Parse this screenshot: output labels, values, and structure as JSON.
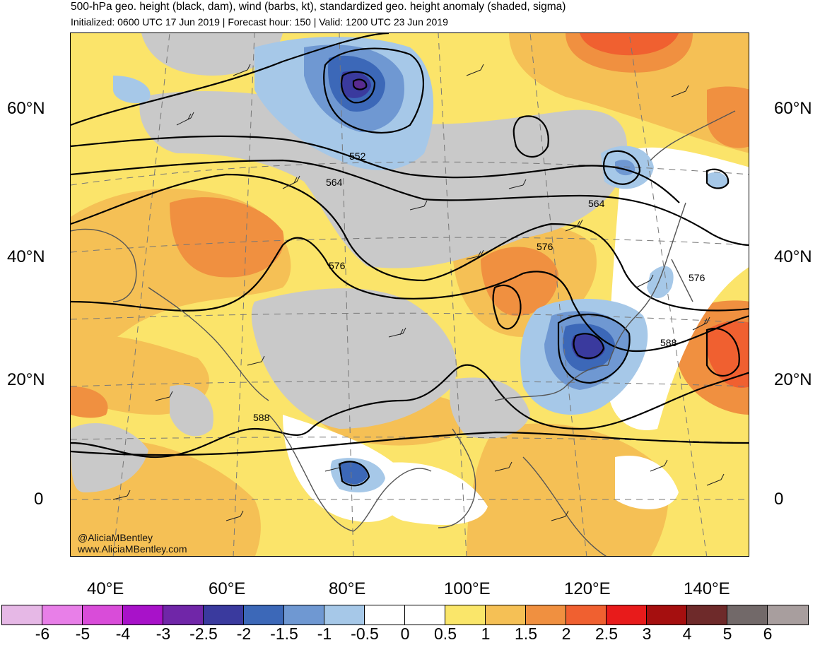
{
  "title": "500-hPa geo. height (black, dam), wind (barbs, kt), standardized geo. height anomaly (shaded, sigma)",
  "subtitle": "Initialized: 0600 UTC 17 Jun 2019 | Forecast hour: 150 | Valid: 1200 UTC 23 Jun 2019",
  "credit": {
    "handle": "@AliciaMBentley",
    "website": "www.AliciaMBentley.com"
  },
  "lat_labels": [
    "60°N",
    "40°N",
    "20°N",
    "0"
  ],
  "lon_labels": [
    "40°E",
    "60°E",
    "80°E",
    "100°E",
    "120°E",
    "140°E"
  ],
  "contour_labels": [
    "552",
    "564",
    "564",
    "576",
    "576",
    "576",
    "588",
    "588"
  ],
  "colorbar": {
    "labels": [
      "-6",
      "-5",
      "-4",
      "-3",
      "-2.5",
      "-2",
      "-1.5",
      "-1",
      "-0.5",
      "0",
      "0.5",
      "1",
      "1.5",
      "2",
      "2.5",
      "3",
      "4",
      "5",
      "6"
    ],
    "colors": [
      "#e6b8e6",
      "#e87fe8",
      "#d94cd9",
      "#a812c9",
      "#7026a8",
      "#3a3a9e",
      "#3c68b8",
      "#6f98d2",
      "#a6c8e8",
      "#ffffff",
      "#ffffff",
      "#fae66a",
      "#f5c055",
      "#f09040",
      "#f06030",
      "#e81b1b",
      "#a50f0f",
      "#6e2a2a",
      "#726969",
      "#a89e9e"
    ]
  }
}
